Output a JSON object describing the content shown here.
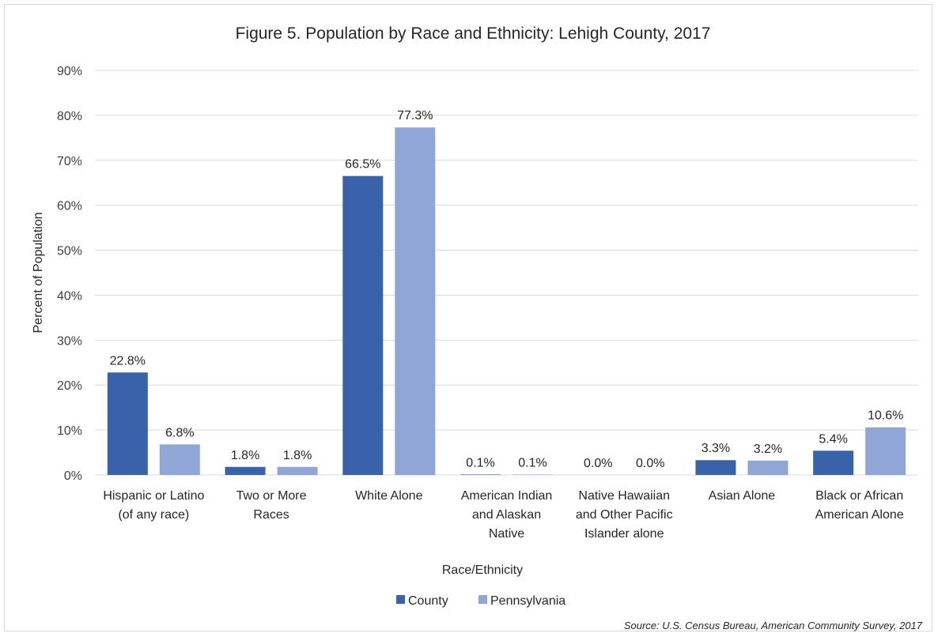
{
  "chart_data": {
    "type": "bar",
    "title": "Figure 5. Population by Race and Ethnicity: Lehigh County, 2017",
    "xlabel": "Race/Ethnicity",
    "ylabel": "Percent of Population",
    "ylim": [
      0,
      90
    ],
    "yticks": [
      "0%",
      "10%",
      "20%",
      "30%",
      "40%",
      "50%",
      "60%",
      "70%",
      "80%",
      "90%"
    ],
    "ytick_values": [
      0,
      10,
      20,
      30,
      40,
      50,
      60,
      70,
      80,
      90
    ],
    "grid": true,
    "legend_position": "bottom",
    "categories": [
      [
        "Hispanic or Latino",
        "(of any race)"
      ],
      [
        "Two or More",
        "Races"
      ],
      [
        "White Alone"
      ],
      [
        "American Indian",
        "and Alaskan",
        "Native"
      ],
      [
        "Native Hawaiian",
        "and Other Pacific",
        "Islander alone"
      ],
      [
        "Asian Alone"
      ],
      [
        "Black or African",
        "American Alone"
      ]
    ],
    "series": [
      {
        "name": "County",
        "color": "#3a62aa",
        "values": [
          22.8,
          1.8,
          66.5,
          0.1,
          0.0,
          3.3,
          5.4
        ],
        "labels": [
          "22.8%",
          "1.8%",
          "66.5%",
          "0.1%",
          "0.0%",
          "3.3%",
          "5.4%"
        ]
      },
      {
        "name": "Pennsylvania",
        "color": "#8fa6d6",
        "values": [
          6.8,
          1.8,
          77.3,
          0.1,
          0.0,
          3.2,
          10.6
        ],
        "labels": [
          "6.8%",
          "1.8%",
          "77.3%",
          "0.1%",
          "0.0%",
          "3.2%",
          "10.6%"
        ]
      }
    ],
    "source": "Source: U.S. Census Bureau, American Community Survey, 2017"
  }
}
